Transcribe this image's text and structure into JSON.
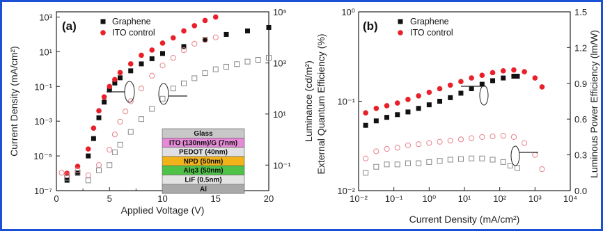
{
  "colors": {
    "frame": "#1a4fd6",
    "graphene": "#111111",
    "ito": "#e8202a",
    "ito_open": "#e8808a",
    "graphene_open": "#888888"
  },
  "chart_data": [
    {
      "panel": "(a)",
      "type": "scatter",
      "xlabel": "Applied Voltage (V)",
      "ylabel": "Current Density (mA/cm²)",
      "y2label": "Luminance (cd/m²)",
      "xlim": [
        0,
        20
      ],
      "ylim_log10": [
        -7,
        3.3
      ],
      "y2lim_log10": [
        -2,
        5
      ],
      "x_ticks": [
        "0",
        "5",
        "10",
        "15",
        "20"
      ],
      "y_ticks": [
        "10⁻⁷",
        "10⁻⁵",
        "10⁻³",
        "10⁻¹",
        "10¹",
        "10³"
      ],
      "y2_ticks": [
        "10⁻¹",
        "10¹",
        "10³",
        "10⁵"
      ],
      "legend": {
        "placement": "top-left",
        "entries": [
          "Graphene",
          "ITO control"
        ]
      },
      "series": [
        {
          "name": "Graphene",
          "axis": "left",
          "marker": "filled-square",
          "x": [
            1.0,
            2.0,
            3.0,
            3.5,
            4.0,
            4.5,
            5.0,
            5.5,
            6.0,
            7.0,
            8.0,
            9.0,
            10.0,
            12.0,
            14.0,
            16.0,
            18.0,
            20.0
          ],
          "y_log10": [
            -6.4,
            -6.0,
            -5.0,
            -4.0,
            -2.8,
            -1.9,
            -1.2,
            -0.8,
            -0.5,
            -0.1,
            0.3,
            0.6,
            0.9,
            1.3,
            1.7,
            2.0,
            2.2,
            2.4
          ]
        },
        {
          "name": "ITO control",
          "axis": "left",
          "marker": "filled-circle",
          "x": [
            1.0,
            2.0,
            3.0,
            3.5,
            4.0,
            4.5,
            5.0,
            5.5,
            6.0,
            7.0,
            8.0,
            9.0,
            10.0,
            11.0,
            12.0,
            13.0,
            14.0,
            15.0
          ],
          "y_log10": [
            -6.0,
            -5.6,
            -4.6,
            -3.4,
            -2.4,
            -1.6,
            -1.0,
            -0.6,
            -0.2,
            0.3,
            0.8,
            1.1,
            1.5,
            1.8,
            2.2,
            2.5,
            2.8,
            3.0
          ]
        },
        {
          "name": "ITO control luminance",
          "axis": "right",
          "marker": "open-circle",
          "x": [
            0.5,
            1.0,
            2.0,
            3.0,
            4.0,
            5.0,
            5.5,
            6.0,
            6.5,
            7.0,
            8.0,
            9.0,
            10.0,
            11.0,
            12.0,
            13.0,
            14.0,
            15.0
          ],
          "y_log10": [
            -1.3,
            -1.4,
            -1.2,
            -1.4,
            -1.0,
            -0.4,
            0.2,
            0.7,
            1.1,
            1.5,
            2.0,
            2.5,
            2.9,
            3.2,
            3.5,
            3.75,
            3.9,
            4.0
          ]
        },
        {
          "name": "Graphene luminance",
          "axis": "right",
          "marker": "open-square",
          "x": [
            1.0,
            2.0,
            3.0,
            4.0,
            5.0,
            5.5,
            6.0,
            7.0,
            8.0,
            9.0,
            10.0,
            11.0,
            12.0,
            13.0,
            14.0,
            15.0,
            16.0,
            17.0,
            18.0,
            19.0,
            20.0
          ],
          "y_log10": [
            -1.5,
            -1.3,
            -1.6,
            -1.2,
            -1.0,
            -0.5,
            -0.2,
            0.3,
            0.8,
            1.2,
            1.6,
            2.0,
            2.2,
            2.4,
            2.6,
            2.75,
            2.85,
            2.95,
            3.05,
            3.12,
            3.2
          ]
        }
      ],
      "inset_layers": [
        {
          "label": "Glass",
          "color": "#c8c8c8"
        },
        {
          "label": "ITO (130nm)/G (7nm)",
          "color": "#e58ad6"
        },
        {
          "label": "PEDOT (40nm)",
          "color": "#e0dfe2"
        },
        {
          "label": "NPD (50nm)",
          "color": "#f2b31a"
        },
        {
          "label": "Alq3 (50nm)",
          "color": "#4fc24a"
        },
        {
          "label": "LiF (0.5nm)",
          "color": "#e3e3e3"
        },
        {
          "label": "Al",
          "color": "#a9a9a9"
        }
      ]
    },
    {
      "panel": "(b)",
      "type": "scatter",
      "xlabel": "Current Density (mA/cm²)",
      "ylabel": "External Quantum Efficiency (%)",
      "y2label": "Luminous Power Efficiency (lm/W)",
      "xlim_log10": [
        -2,
        4
      ],
      "ylim_log10": [
        -2,
        0
      ],
      "y2lim": [
        0,
        1.5
      ],
      "x_ticks": [
        "10⁻²",
        "10⁻¹",
        "10⁰",
        "10¹",
        "10²",
        "10³",
        "10⁴"
      ],
      "y_ticks": [
        "10⁻²",
        "10⁻¹",
        "10⁰"
      ],
      "y2_ticks": [
        "0.0",
        "0.3",
        "0.6",
        "0.9",
        "1.2",
        "1.5"
      ],
      "legend": {
        "placement": "top-left",
        "entries": [
          "Graphene",
          "ITO control"
        ]
      },
      "series": [
        {
          "name": "Graphene",
          "axis": "left",
          "marker": "filled-square",
          "x_log10": [
            -1.8,
            -1.5,
            -1.2,
            -0.9,
            -0.6,
            -0.3,
            0.0,
            0.3,
            0.6,
            0.9,
            1.2,
            1.5,
            1.8,
            2.1,
            2.4,
            2.5
          ],
          "y_log10": [
            -1.27,
            -1.22,
            -1.18,
            -1.15,
            -1.12,
            -1.08,
            -1.04,
            -1.0,
            -0.96,
            -0.91,
            -0.86,
            -0.81,
            -0.77,
            -0.74,
            -0.72,
            -0.72
          ]
        },
        {
          "name": "ITO control",
          "axis": "left",
          "marker": "filled-circle",
          "x_log10": [
            -1.8,
            -1.5,
            -1.2,
            -0.9,
            -0.6,
            -0.3,
            0.0,
            0.3,
            0.6,
            0.9,
            1.2,
            1.5,
            1.8,
            2.1,
            2.4,
            2.7,
            3.0,
            3.2
          ],
          "y_log10": [
            -1.13,
            -1.08,
            -1.05,
            -1.02,
            -0.98,
            -0.94,
            -0.9,
            -0.86,
            -0.82,
            -0.78,
            -0.74,
            -0.71,
            -0.68,
            -0.66,
            -0.65,
            -0.67,
            -0.74,
            -0.84
          ]
        },
        {
          "name": "ITO control power efficiency",
          "axis": "right",
          "marker": "open-circle",
          "x_log10": [
            -1.8,
            -1.5,
            -1.2,
            -0.9,
            -0.6,
            -0.3,
            0.0,
            0.3,
            0.6,
            0.9,
            1.2,
            1.5,
            1.8,
            2.1,
            2.4,
            2.7,
            3.0,
            3.2
          ],
          "y": [
            0.27,
            0.33,
            0.35,
            0.36,
            0.38,
            0.39,
            0.4,
            0.41,
            0.42,
            0.43,
            0.44,
            0.45,
            0.455,
            0.46,
            0.45,
            0.4,
            0.3,
            0.18
          ]
        },
        {
          "name": "Graphene power efficiency",
          "axis": "right",
          "marker": "open-square",
          "x_log10": [
            -1.8,
            -1.5,
            -1.2,
            -0.9,
            -0.6,
            -0.3,
            0.0,
            0.3,
            0.6,
            0.9,
            1.2,
            1.5,
            1.8,
            2.1,
            2.3,
            2.5
          ],
          "y": [
            0.15,
            0.2,
            0.22,
            0.22,
            0.23,
            0.23,
            0.24,
            0.25,
            0.26,
            0.265,
            0.27,
            0.27,
            0.26,
            0.24,
            0.21,
            0.19
          ]
        }
      ]
    }
  ]
}
